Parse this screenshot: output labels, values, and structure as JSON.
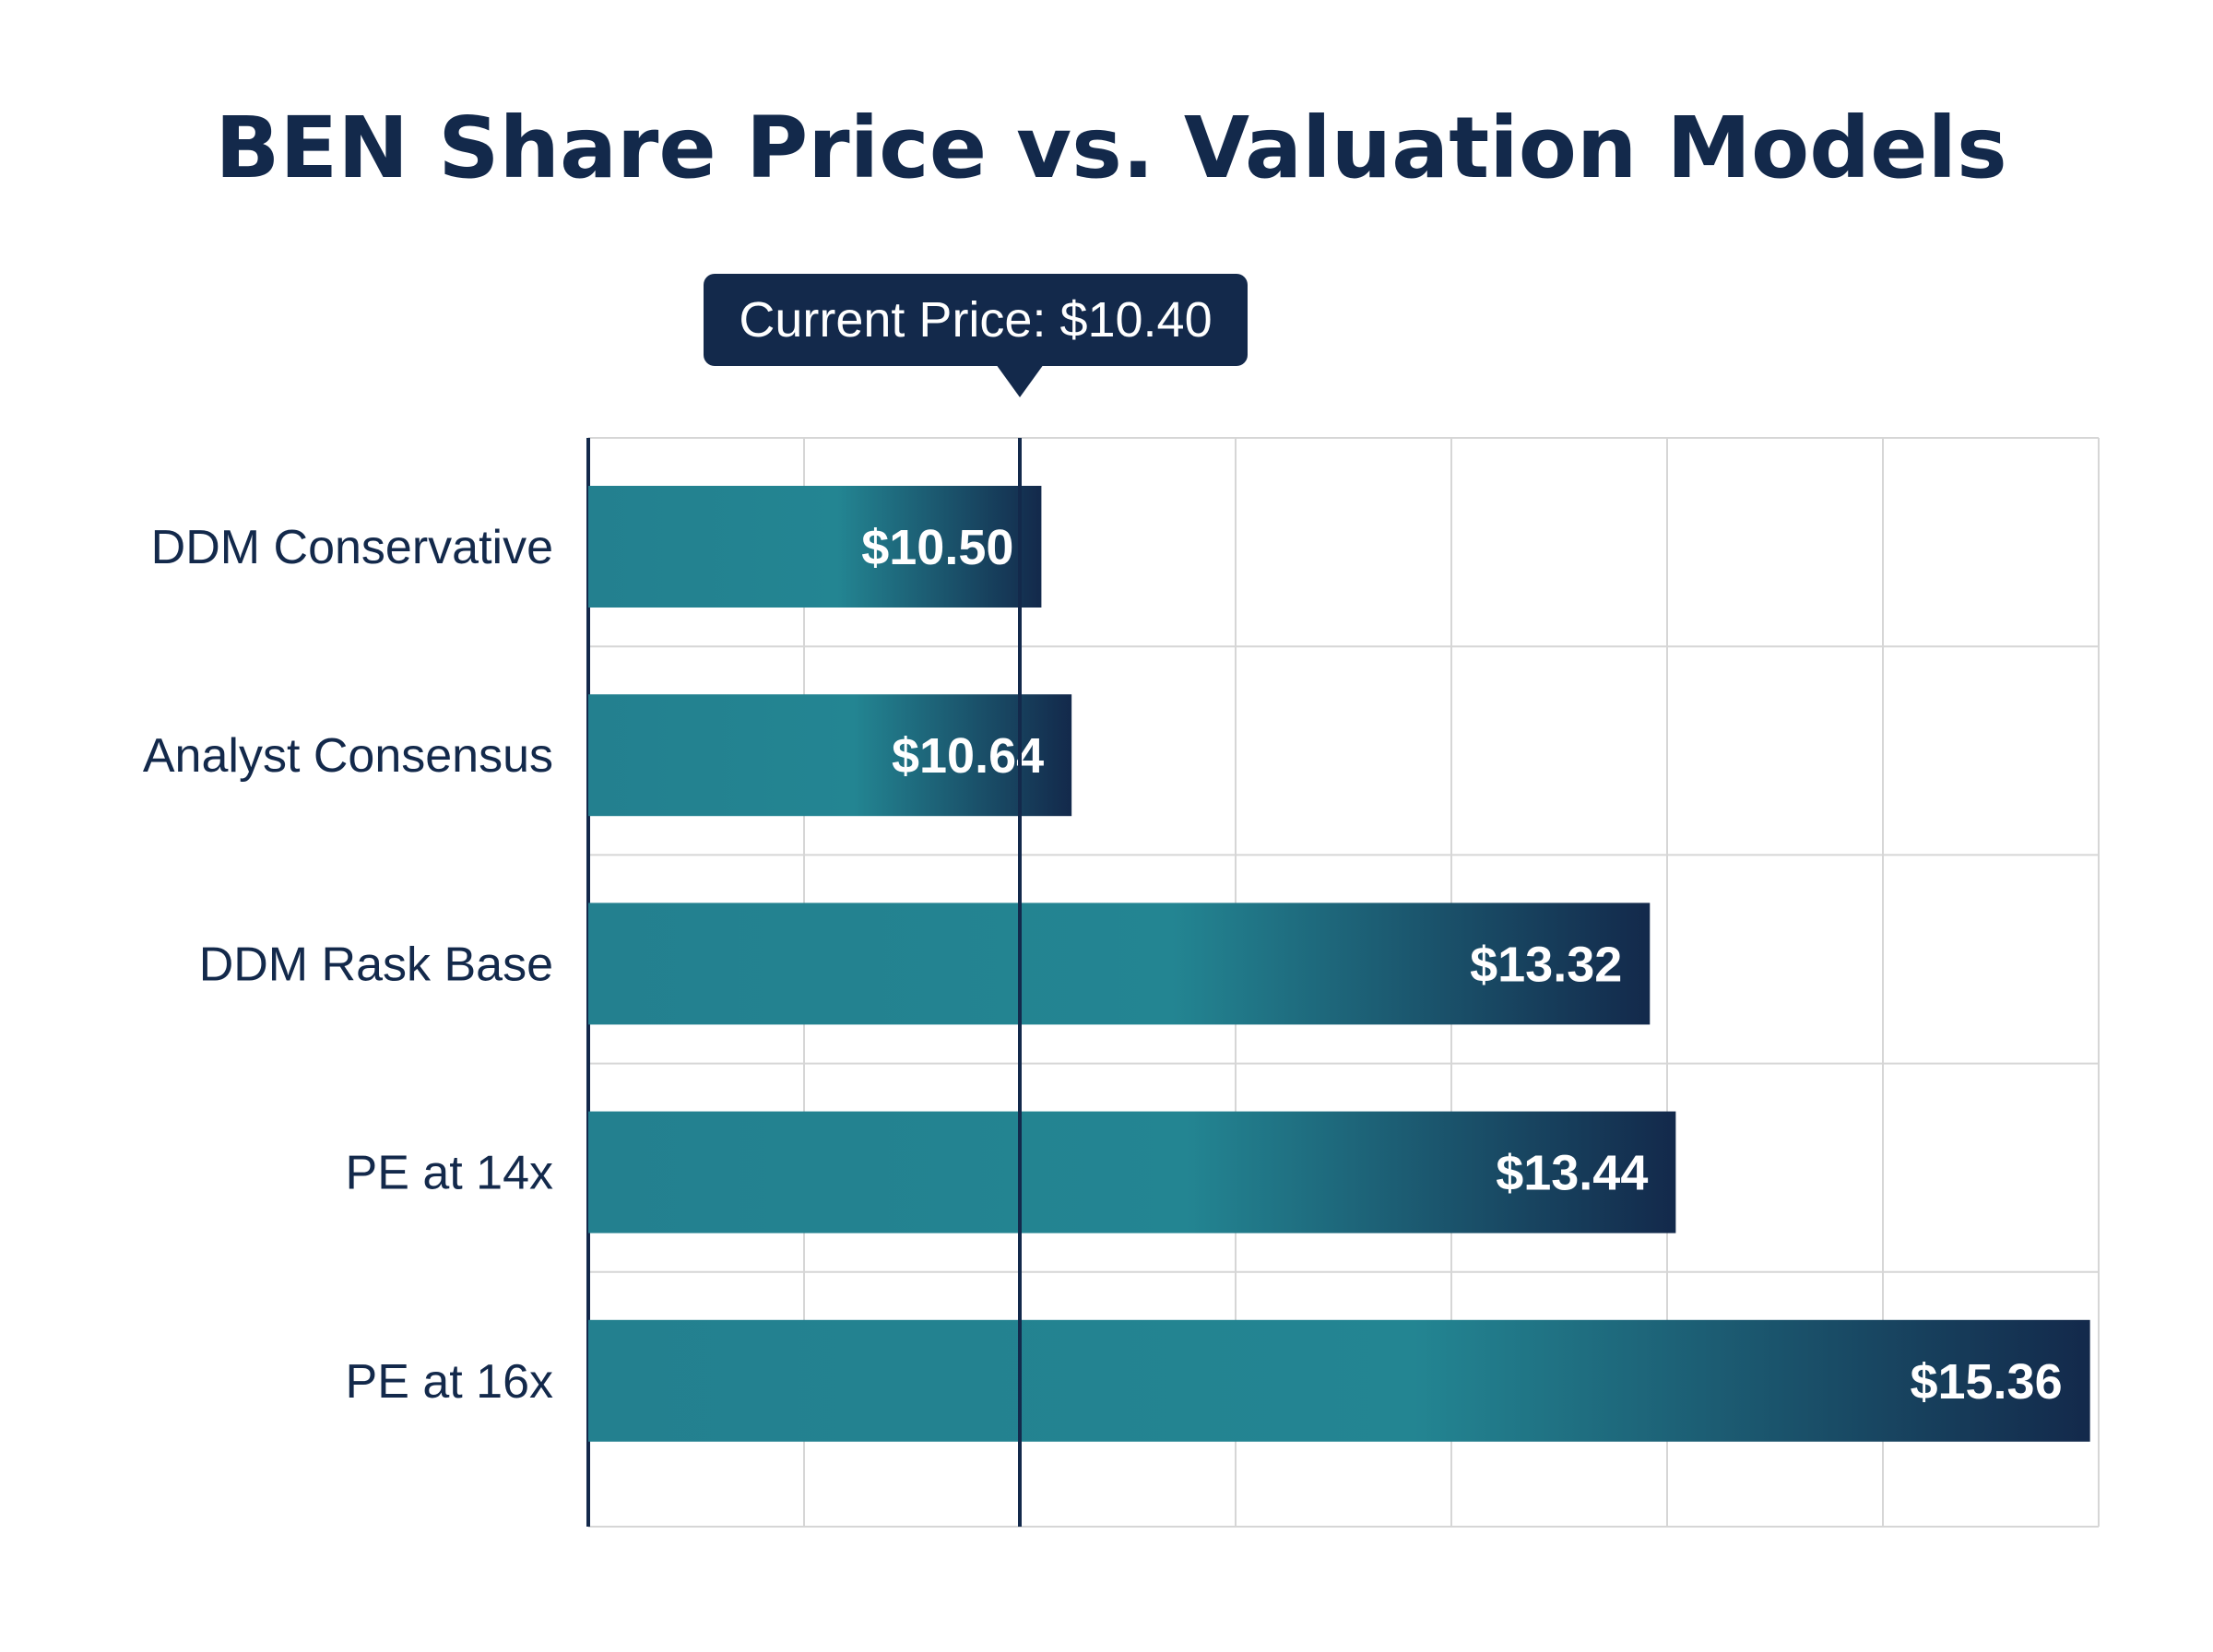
{
  "chart_data": {
    "type": "bar",
    "orientation": "horizontal",
    "title": "BEN Share Price vs. Valuation Models",
    "categories": [
      "DDM Conservative",
      "Analyst Consensus",
      "DDM Rask Base",
      "PE at 14x",
      "PE at 16x"
    ],
    "values": [
      10.5,
      10.64,
      13.32,
      13.44,
      15.36
    ],
    "value_labels": [
      "$10.50",
      "$10.64",
      "$13.32",
      "$13.44",
      "$15.36"
    ],
    "xlim": [
      8.4,
      15.4
    ],
    "grid": true,
    "reference_line": {
      "value": 10.4,
      "label": "Current Price: $10.40"
    },
    "colors": {
      "bar_start": "#23808f",
      "bar_mid": "#238592",
      "bar_end": "#13294b",
      "title": "#13294b",
      "reference_line": "#13294b",
      "callout_bg": "#13294b"
    }
  }
}
